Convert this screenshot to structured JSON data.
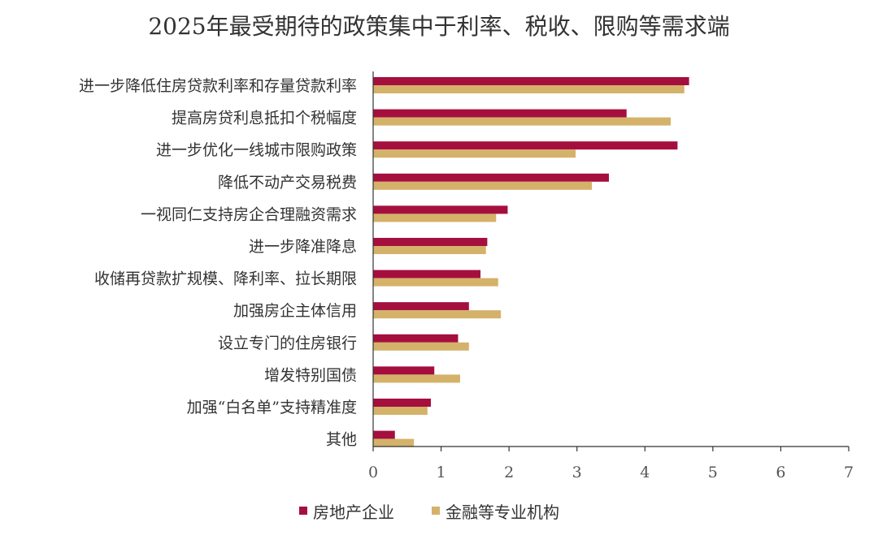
{
  "chart_data": {
    "type": "bar",
    "orientation": "horizontal",
    "title": "2025年最受期待的政策集中于利率、税收、限购等需求端",
    "xlabel": "",
    "ylabel": "",
    "xlim": [
      0,
      7
    ],
    "xticks": [
      0,
      1,
      2,
      3,
      4,
      5,
      6,
      7
    ],
    "grid": false,
    "legend_position": "bottom",
    "categories": [
      "进一步降低住房贷款利率和存量贷款利率",
      "提高房贷利息抵扣个税幅度",
      "进一步优化一线城市限购政策",
      "降低不动产交易税费",
      "一视同仁支持房企合理融资需求",
      "进一步降准降息",
      "收储再贷款扩规模、降利率、拉长期限",
      "加强房企主体信用",
      "设立专门的住房银行",
      "增发特别国债",
      "加强“白名单”支持精准度",
      "其他"
    ],
    "series": [
      {
        "name": "房地产企业",
        "color": "#A50F3D",
        "values": [
          4.65,
          3.73,
          4.48,
          3.47,
          1.98,
          1.68,
          1.58,
          1.41,
          1.25,
          0.9,
          0.85,
          0.32
        ]
      },
      {
        "name": "金融等专业机构",
        "color": "#D4B26A",
        "values": [
          4.58,
          4.38,
          2.98,
          3.22,
          1.81,
          1.66,
          1.84,
          1.88,
          1.41,
          1.28,
          0.8,
          0.6
        ]
      }
    ]
  }
}
